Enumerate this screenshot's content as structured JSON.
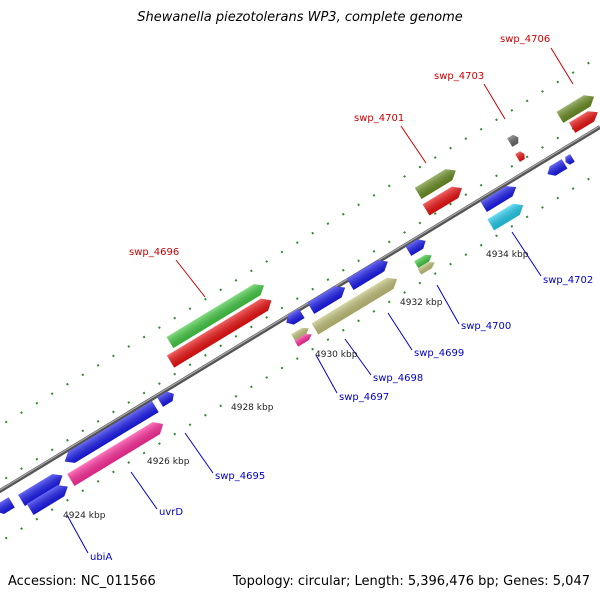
{
  "title": "Shewanella piezotolerans WP3, complete genome",
  "accession": "Accession: NC_011566",
  "summary": "Topology: circular; Length: 5,396,476 bp; Genes: 5,047",
  "colors": {
    "blue": "#1a1aee",
    "red": "#ee1111",
    "green": "#44cc44",
    "olive": "#6b8e23",
    "pink": "#ff2d9b",
    "khaki": "#c2c27a",
    "cyan": "#22ccee",
    "gray": "#666666",
    "label_red": "#cc0000",
    "label_blue": "#0000cc"
  },
  "kbp_labels": [
    {
      "text": "4924 kbp"
    },
    {
      "text": "4926 kbp"
    },
    {
      "text": "4928 kbp"
    },
    {
      "text": "4930 kbp"
    },
    {
      "text": "4932 kbp"
    },
    {
      "text": "4934 kbp"
    }
  ],
  "gene_labels": [
    {
      "text": "swp_4706",
      "color": "red"
    },
    {
      "text": "swp_4703",
      "color": "red"
    },
    {
      "text": "swp_4701",
      "color": "red"
    },
    {
      "text": "swp_4696",
      "color": "red"
    },
    {
      "text": "swp_4702",
      "color": "blue"
    },
    {
      "text": "swp_4700",
      "color": "blue"
    },
    {
      "text": "swp_4699",
      "color": "blue"
    },
    {
      "text": "swp_4698",
      "color": "blue"
    },
    {
      "text": "swp_4697",
      "color": "blue"
    },
    {
      "text": "swp_4695",
      "color": "blue"
    },
    {
      "text": "uvrD",
      "color": "blue"
    },
    {
      "text": "ubiA",
      "color": "blue"
    }
  ]
}
